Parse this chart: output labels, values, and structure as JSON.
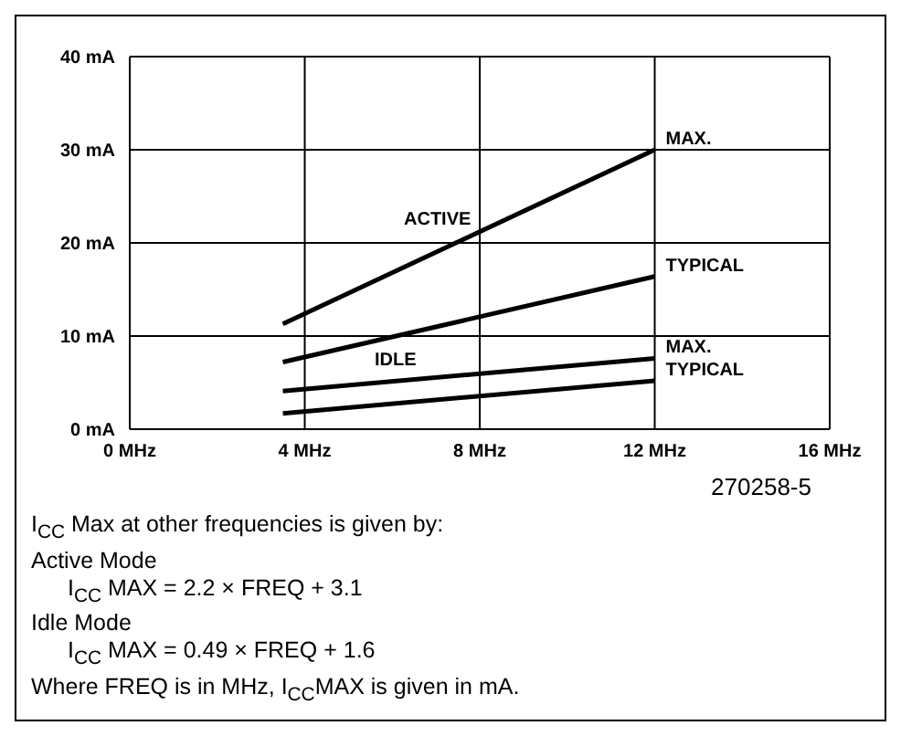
{
  "chart_data": {
    "type": "line",
    "xlim": [
      0,
      16
    ],
    "xticks": [
      {
        "value": 0,
        "label": "0 MHz"
      },
      {
        "value": 4,
        "label": "4 MHz"
      },
      {
        "value": 8,
        "label": "8 MHz"
      },
      {
        "value": 12,
        "label": "12 MHz"
      },
      {
        "value": 16,
        "label": "16 MHz"
      }
    ],
    "ylim": [
      0,
      40
    ],
    "yticks": [
      {
        "value": 0,
        "label": "0 mA"
      },
      {
        "value": 10,
        "label": "10 mA"
      },
      {
        "value": 20,
        "label": "20 mA"
      },
      {
        "value": 30,
        "label": "30 mA"
      },
      {
        "value": 40,
        "label": "40 mA"
      }
    ],
    "grid": true,
    "marker": "none",
    "line_style": "solid",
    "x": [
      3.5,
      12
    ],
    "series": [
      {
        "name": "MAX.",
        "color": "#000000",
        "values": [
          11.3,
          30
        ]
      },
      {
        "name": "TYPICAL",
        "color": "#000000",
        "values": [
          7.2,
          16.4
        ]
      },
      {
        "name": "MAX.",
        "color": "#000000",
        "values": [
          4.1,
          7.6
        ]
      },
      {
        "name": "TYPICAL",
        "color": "#000000",
        "values": [
          1.7,
          5.2
        ]
      }
    ],
    "annotations": [
      "ACTIVE",
      "IDLE",
      "270258-5",
      "I$_{CC}$ Max at other frequencies is given by:",
      "Active Mode",
      "I$_{CC}$ MAX = 2.2 × FREQ + 3.1",
      "Idle Mode",
      "I$_{CC}$ MAX = 0.49 × FREQ + 1.6",
      "Where FREQ is in MHz, I$_{CC}$MAX is given in mA."
    ]
  }
}
